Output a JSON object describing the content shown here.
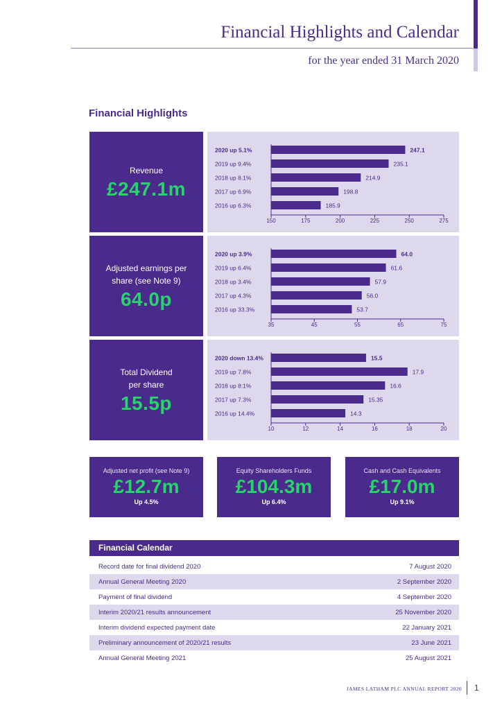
{
  "header": {
    "title": "Financial Highlights and Calendar",
    "subtitle": "for the year ended 31 March 2020"
  },
  "highlights": {
    "heading": "Financial Highlights"
  },
  "kpis": [
    {
      "label": "Revenue",
      "value": "£247.1m"
    },
    {
      "label": "Adjusted earnings per\nshare (see Note 9)",
      "value": "64.0p"
    },
    {
      "label": "Total Dividend\nper share",
      "value": "15.5p"
    }
  ],
  "chart_data": [
    {
      "type": "bar",
      "title": "Revenue",
      "categories": [
        "2020 up 5.1%",
        "2019 up 9.4%",
        "2018 up 8.1%",
        "2017 up 6.9%",
        "2016 up 6.3%"
      ],
      "values": [
        247.1,
        235.1,
        214.9,
        198.8,
        185.9
      ],
      "value_labels": [
        "247.1",
        "235.1",
        "214.9",
        "198.8",
        "185.9"
      ],
      "xlim": [
        150,
        275
      ],
      "ticks": [
        150,
        175,
        200,
        225,
        250,
        275
      ],
      "tick_labels": [
        "150",
        "175",
        "200",
        "225",
        "250",
        "275"
      ],
      "bold_first": true
    },
    {
      "type": "bar",
      "title": "Adjusted earnings per share",
      "categories": [
        "2020 up 3.9%",
        "2019 up 6.4%",
        "2018 up 3.4%",
        "2017 up 4.3%",
        "2016 up 33.3%"
      ],
      "values": [
        64.0,
        61.6,
        57.9,
        56.0,
        53.7
      ],
      "value_labels": [
        "64.0",
        "61.6",
        "57.9",
        "56.0",
        "53.7"
      ],
      "xlim": [
        35,
        75
      ],
      "ticks": [
        35,
        45,
        55,
        65,
        75
      ],
      "tick_labels": [
        "35",
        "45",
        "55",
        "65",
        "75"
      ],
      "bold_first": true
    },
    {
      "type": "bar",
      "title": "Total Dividend per share",
      "categories": [
        "2020 down 13.4%",
        "2019 up 7.8%",
        "2018 up 8.1%",
        "2017 up 7.3%",
        "2016 up 14.4%"
      ],
      "values": [
        15.5,
        17.9,
        16.6,
        15.35,
        14.3
      ],
      "value_labels": [
        "15.5",
        "17.9",
        "16.6",
        "15.35",
        "14.3"
      ],
      "xlim": [
        10,
        20
      ],
      "ticks": [
        10,
        12,
        14,
        16,
        18,
        20
      ],
      "tick_labels": [
        "10",
        "12",
        "14",
        "16",
        "18",
        "20"
      ],
      "bold_first": true
    }
  ],
  "boxes": [
    {
      "label": "Adjusted net profit (see Note 9)",
      "value": "£12.7m",
      "change": "Up 4.5%"
    },
    {
      "label": "Equity Shareholders Funds",
      "value": "£104.3m",
      "change": "Up 6.4%"
    },
    {
      "label": "Cash and Cash Equivalents",
      "value": "£17.0m",
      "change": "Up 9.1%"
    }
  ],
  "calendar": {
    "heading": "Financial Calendar",
    "rows": [
      {
        "event": "Record date for final dividend 2020",
        "date": "7 August 2020"
      },
      {
        "event": "Annual General Meeting 2020",
        "date": "2 September 2020"
      },
      {
        "event": "Payment of final dividend",
        "date": "4 September 2020"
      },
      {
        "event": "Interim 2020/21 results announcement",
        "date": "25 November 2020"
      },
      {
        "event": "Interim dividend expected payment date",
        "date": "22 January 2021"
      },
      {
        "event": "Preliminary announcement of 2020/21 results",
        "date": "23 June 2021"
      },
      {
        "event": "Annual General Meeting 2021",
        "date": "25 August 2021"
      }
    ]
  },
  "footer": {
    "report": "JAMES LATHAM PLC ANNUAL REPORT 2020",
    "page": "1"
  },
  "colors": {
    "primary": "#4a2b8c",
    "accent": "#27d36b",
    "panel": "#ddd8ec"
  }
}
